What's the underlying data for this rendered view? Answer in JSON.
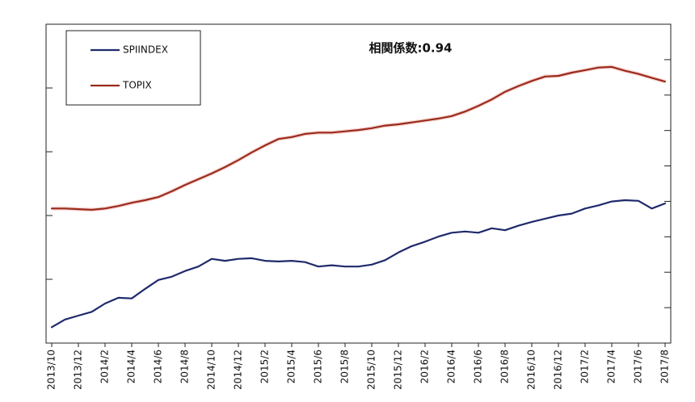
{
  "chart_data": {
    "type": "line",
    "title": "相関係数:0.94",
    "categories": [
      "2013/10",
      null,
      "2013/12",
      null,
      "2014/2",
      null,
      "2014/4",
      null,
      "2014/6",
      null,
      "2014/8",
      null,
      "2014/10",
      null,
      "2014/12",
      null,
      "2015/2",
      null,
      "2015/4",
      null,
      "2015/6",
      null,
      "2015/8",
      null,
      "2015/10",
      null,
      "2015/12",
      null,
      "2016/2",
      null,
      "2016/4",
      null,
      "2016/6",
      null,
      "2016/8",
      null,
      "2016/10",
      null,
      "2016/12",
      null,
      "2017/2",
      null,
      "2017/4",
      null,
      "2017/6",
      null,
      "2017/8"
    ],
    "series": [
      {
        "name": "SPIINDEX",
        "color": "#1f2a6b",
        "values": [
          0.25,
          0.37,
          0.43,
          0.49,
          0.62,
          0.71,
          0.7,
          0.85,
          0.99,
          1.04,
          1.13,
          1.2,
          1.32,
          1.29,
          1.32,
          1.33,
          1.29,
          1.28,
          1.29,
          1.27,
          1.2,
          1.22,
          1.2,
          1.2,
          1.23,
          1.3,
          1.42,
          1.52,
          1.59,
          1.67,
          1.73,
          1.75,
          1.73,
          1.8,
          1.77,
          1.84,
          1.9,
          1.95,
          2.0,
          2.03,
          2.11,
          2.16,
          2.22,
          2.24,
          2.23,
          2.11,
          2.19
        ]
      },
      {
        "name": "TOPIX",
        "color": "#9b2a1c",
        "values": [
          2.11,
          2.11,
          2.1,
          2.09,
          2.11,
          2.15,
          2.2,
          2.24,
          2.29,
          2.38,
          2.48,
          2.57,
          2.66,
          2.76,
          2.87,
          2.99,
          3.1,
          3.2,
          3.23,
          3.28,
          3.3,
          3.3,
          3.32,
          3.34,
          3.37,
          3.41,
          3.43,
          3.46,
          3.49,
          3.52,
          3.56,
          3.63,
          3.72,
          3.82,
          3.94,
          4.03,
          4.11,
          4.18,
          4.19,
          4.24,
          4.28,
          4.32,
          4.33,
          4.27,
          4.22,
          4.16,
          4.1
        ]
      }
    ],
    "ylim": [
      0,
      5
    ],
    "yticks": [
      1,
      2,
      3,
      4
    ],
    "y2lim": [
      0,
      9
    ],
    "y2ticks": [
      1,
      2,
      3,
      4,
      5,
      6,
      7,
      8
    ]
  }
}
